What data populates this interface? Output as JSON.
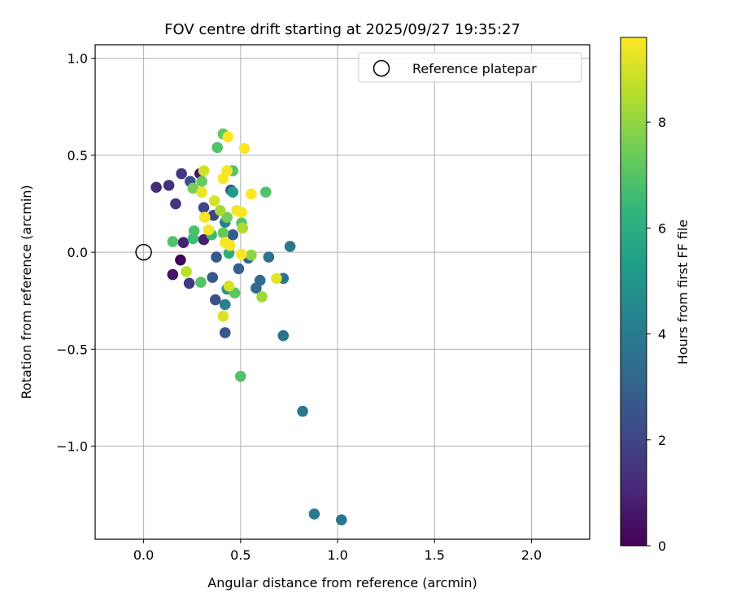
{
  "chart_data": {
    "type": "scatter",
    "title": "FOV centre drift starting at 2025/09/27 19:35:27",
    "xlabel": "Angular distance from reference (arcmin)",
    "ylabel": "Rotation from reference (arcmin)",
    "xlim": [
      -0.25,
      2.3
    ],
    "ylim": [
      -1.48,
      1.07
    ],
    "xticks": [
      0.0,
      0.5,
      1.0,
      1.5,
      2.0
    ],
    "xtick_labels": [
      "0.0",
      "0.5",
      "1.0",
      "1.5",
      "2.0"
    ],
    "yticks": [
      -1.0,
      -0.5,
      0.0,
      0.5,
      1.0
    ],
    "ytick_labels": [
      "−1.0",
      "−0.5",
      "0.0",
      "0.5",
      "1.0"
    ],
    "grid": true,
    "legend": {
      "position": "top-right",
      "entries": [
        "Reference platepar"
      ]
    },
    "reference_point": {
      "x": 0.0,
      "y": 0.0
    },
    "colorbar": {
      "label": "Hours from first FF file",
      "range": [
        0,
        9.6
      ],
      "ticks": [
        0,
        2,
        4,
        6,
        8
      ],
      "tick_labels": [
        "0",
        "2",
        "4",
        "6",
        "8"
      ],
      "colormap": [
        "#440154",
        "#482878",
        "#3e4989",
        "#31688e",
        "#26828e",
        "#1f9e89",
        "#35b779",
        "#6ece58",
        "#b5de2b",
        "#fde725"
      ]
    },
    "points": [
      {
        "x": 0.19,
        "y": -0.04,
        "t": 0.1
      },
      {
        "x": 0.15,
        "y": -0.115,
        "t": 0.5
      },
      {
        "x": 0.205,
        "y": 0.05,
        "t": 0.9
      },
      {
        "x": 0.31,
        "y": 0.065,
        "t": 0.9
      },
      {
        "x": 0.29,
        "y": 0.405,
        "t": 0.6
      },
      {
        "x": 0.065,
        "y": 0.335,
        "t": 1.2
      },
      {
        "x": 0.13,
        "y": 0.345,
        "t": 1.4
      },
      {
        "x": 0.195,
        "y": 0.405,
        "t": 1.6
      },
      {
        "x": 0.165,
        "y": 0.25,
        "t": 1.5
      },
      {
        "x": 0.235,
        "y": -0.16,
        "t": 1.6
      },
      {
        "x": 0.24,
        "y": 0.365,
        "t": 2.4
      },
      {
        "x": 0.31,
        "y": 0.23,
        "t": 2.0
      },
      {
        "x": 0.36,
        "y": 0.19,
        "t": 2.1
      },
      {
        "x": 0.37,
        "y": -0.245,
        "t": 2.4
      },
      {
        "x": 0.355,
        "y": -0.13,
        "t": 2.6
      },
      {
        "x": 0.375,
        "y": -0.025,
        "t": 2.7
      },
      {
        "x": 0.42,
        "y": -0.415,
        "t": 2.6
      },
      {
        "x": 0.45,
        "y": 0.32,
        "t": 2.3
      },
      {
        "x": 0.46,
        "y": 0.09,
        "t": 2.8
      },
      {
        "x": 0.49,
        "y": -0.085,
        "t": 3.0
      },
      {
        "x": 0.54,
        "y": -0.03,
        "t": 3.1
      },
      {
        "x": 0.58,
        "y": -0.185,
        "t": 3.3
      },
      {
        "x": 0.6,
        "y": -0.145,
        "t": 3.3
      },
      {
        "x": 0.645,
        "y": -0.025,
        "t": 3.6
      },
      {
        "x": 0.72,
        "y": -0.135,
        "t": 3.7
      },
      {
        "x": 0.72,
        "y": -0.43,
        "t": 3.7
      },
      {
        "x": 0.755,
        "y": 0.03,
        "t": 3.8
      },
      {
        "x": 0.82,
        "y": -0.82,
        "t": 3.8
      },
      {
        "x": 0.88,
        "y": -1.35,
        "t": 3.9
      },
      {
        "x": 1.02,
        "y": -1.38,
        "t": 3.8
      },
      {
        "x": 0.42,
        "y": -0.27,
        "t": 4.3
      },
      {
        "x": 0.42,
        "y": 0.155,
        "t": 4.1
      },
      {
        "x": 0.43,
        "y": -0.19,
        "t": 5.1
      },
      {
        "x": 0.46,
        "y": 0.31,
        "t": 5.3
      },
      {
        "x": 0.44,
        "y": -0.005,
        "t": 6.0
      },
      {
        "x": 0.35,
        "y": 0.09,
        "t": 6.5
      },
      {
        "x": 0.255,
        "y": 0.07,
        "t": 6.6
      },
      {
        "x": 0.26,
        "y": 0.11,
        "t": 6.8
      },
      {
        "x": 0.15,
        "y": 0.055,
        "t": 6.9
      },
      {
        "x": 0.295,
        "y": -0.155,
        "t": 7.0
      },
      {
        "x": 0.38,
        "y": 0.54,
        "t": 6.9
      },
      {
        "x": 0.41,
        "y": 0.61,
        "t": 7.2
      },
      {
        "x": 0.46,
        "y": 0.42,
        "t": 7.0
      },
      {
        "x": 0.47,
        "y": -0.21,
        "t": 7.1
      },
      {
        "x": 0.5,
        "y": -0.64,
        "t": 6.9
      },
      {
        "x": 0.505,
        "y": 0.15,
        "t": 7.0
      },
      {
        "x": 0.63,
        "y": 0.31,
        "t": 6.9
      },
      {
        "x": 0.3,
        "y": 0.365,
        "t": 7.3
      },
      {
        "x": 0.41,
        "y": 0.1,
        "t": 7.3
      },
      {
        "x": 0.43,
        "y": 0.18,
        "t": 7.5
      },
      {
        "x": 0.255,
        "y": 0.33,
        "t": 7.6
      },
      {
        "x": 0.555,
        "y": -0.015,
        "t": 7.9
      },
      {
        "x": 0.61,
        "y": -0.23,
        "t": 8.2
      },
      {
        "x": 0.395,
        "y": 0.215,
        "t": 8.3
      },
      {
        "x": 0.51,
        "y": 0.125,
        "t": 8.4
      },
      {
        "x": 0.22,
        "y": -0.1,
        "t": 8.6
      },
      {
        "x": 0.31,
        "y": 0.42,
        "t": 8.9
      },
      {
        "x": 0.365,
        "y": 0.265,
        "t": 9.0
      },
      {
        "x": 0.44,
        "y": -0.175,
        "t": 9.0
      },
      {
        "x": 0.41,
        "y": -0.33,
        "t": 9.1
      },
      {
        "x": 0.685,
        "y": -0.135,
        "t": 9.2
      },
      {
        "x": 0.3,
        "y": 0.31,
        "t": 9.3
      },
      {
        "x": 0.335,
        "y": 0.115,
        "t": 9.4
      },
      {
        "x": 0.315,
        "y": 0.18,
        "t": 9.5
      },
      {
        "x": 0.41,
        "y": 0.38,
        "t": 9.5
      },
      {
        "x": 0.43,
        "y": 0.42,
        "t": 9.5
      },
      {
        "x": 0.435,
        "y": 0.595,
        "t": 9.6
      },
      {
        "x": 0.42,
        "y": 0.05,
        "t": 9.5
      },
      {
        "x": 0.445,
        "y": 0.035,
        "t": 9.5
      },
      {
        "x": 0.48,
        "y": 0.215,
        "t": 9.5
      },
      {
        "x": 0.505,
        "y": 0.205,
        "t": 9.5
      },
      {
        "x": 0.505,
        "y": -0.01,
        "t": 9.6
      },
      {
        "x": 0.52,
        "y": 0.535,
        "t": 9.6
      },
      {
        "x": 0.555,
        "y": 0.3,
        "t": 9.6
      }
    ]
  }
}
